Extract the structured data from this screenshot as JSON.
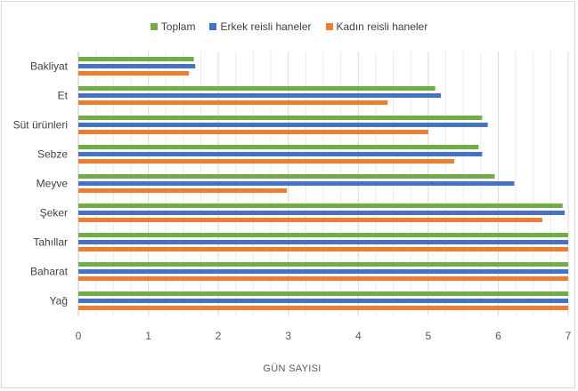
{
  "chart_data": {
    "type": "bar",
    "orientation": "horizontal",
    "categories": [
      "Bakliyat",
      "Et",
      "Süt ürünleri",
      "Sebze",
      "Meyve",
      "Şeker",
      "Tahıllar",
      "Baharat",
      "Yağ"
    ],
    "series": [
      {
        "name": "Toplam",
        "color": "#70ad47",
        "values": [
          1.65,
          5.1,
          5.77,
          5.72,
          5.95,
          6.92,
          7.0,
          7.0,
          7.0
        ]
      },
      {
        "name": "Erkek reisli haneler",
        "color": "#4472c4",
        "values": [
          1.67,
          5.18,
          5.85,
          5.77,
          6.23,
          6.95,
          7.0,
          7.0,
          7.0
        ]
      },
      {
        "name": "Kadın reisli haneler",
        "color": "#ed7d31",
        "values": [
          1.58,
          4.42,
          5.0,
          5.37,
          2.98,
          6.63,
          7.0,
          7.0,
          7.0
        ]
      }
    ],
    "xlim": [
      0,
      7
    ],
    "xticks": [
      "0",
      "1",
      "2",
      "3",
      "4",
      "5",
      "6",
      "7"
    ],
    "xlabel": "GÜN SAYISI",
    "ylabel": "",
    "title": "",
    "grid": true,
    "legend_position": "top"
  }
}
